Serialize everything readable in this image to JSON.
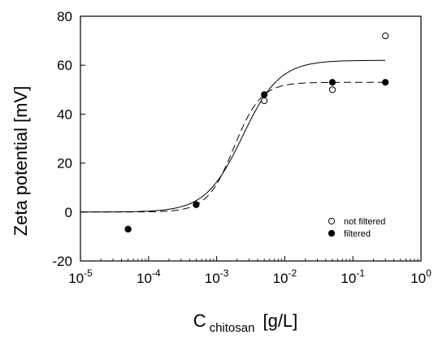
{
  "chart_data": {
    "type": "scatter",
    "xscale": "log",
    "xlim": [
      1e-05,
      1
    ],
    "ylim": [
      -20,
      80
    ],
    "x_ticks": [
      {
        "base": "10",
        "exp": "-5"
      },
      {
        "base": "10",
        "exp": "-4"
      },
      {
        "base": "10",
        "exp": "-3"
      },
      {
        "base": "10",
        "exp": "-2"
      },
      {
        "base": "10",
        "exp": "-1"
      },
      {
        "base": "10",
        "exp": "0"
      }
    ],
    "y_ticks": [
      "-20",
      "0",
      "20",
      "40",
      "60",
      "80"
    ],
    "xlabel": {
      "main": "C",
      "sub": "chitosan",
      "unit": "[g/L]"
    },
    "ylabel": "Zeta potential [mV]",
    "legend_position": "bottom-right",
    "grid": false,
    "series": [
      {
        "name": "not filtered",
        "marker": "open-circle",
        "points": [
          {
            "x": 5e-05,
            "y": -7
          },
          {
            "x": 0.0005,
            "y": 3
          },
          {
            "x": 0.005,
            "y": 45.5
          },
          {
            "x": 0.05,
            "y": 50
          },
          {
            "x": 0.3,
            "y": 72
          }
        ],
        "fit": {
          "style": "solid",
          "bottom": 0,
          "top": 62,
          "x50": 0.0024,
          "hill": 1.6
        }
      },
      {
        "name": "filtered",
        "marker": "filled-circle",
        "points": [
          {
            "x": 5e-05,
            "y": -7
          },
          {
            "x": 0.0005,
            "y": 3
          },
          {
            "x": 0.005,
            "y": 48
          },
          {
            "x": 0.05,
            "y": 53
          },
          {
            "x": 0.3,
            "y": 53
          }
        ],
        "fit": {
          "style": "dashed",
          "bottom": 0,
          "top": 53,
          "x50": 0.0018,
          "hill": 2.2
        }
      }
    ]
  }
}
